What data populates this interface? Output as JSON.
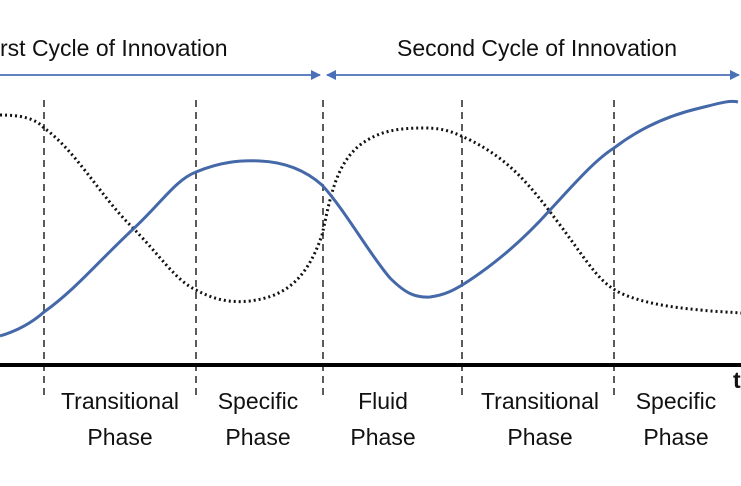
{
  "header": {
    "first_cycle": "rst Cycle of Innovation",
    "second_cycle": "Second Cycle of Innovation"
  },
  "axis_label": "t",
  "phases": [
    {
      "lines": [
        "Transitional",
        "Phase"
      ]
    },
    {
      "lines": [
        "Specific",
        "Phase"
      ]
    },
    {
      "lines": [
        "Fluid",
        "Phase"
      ]
    },
    {
      "lines": [
        "Transitional",
        "Phase"
      ]
    },
    {
      "lines": [
        "Specific",
        "Phase"
      ]
    }
  ]
}
